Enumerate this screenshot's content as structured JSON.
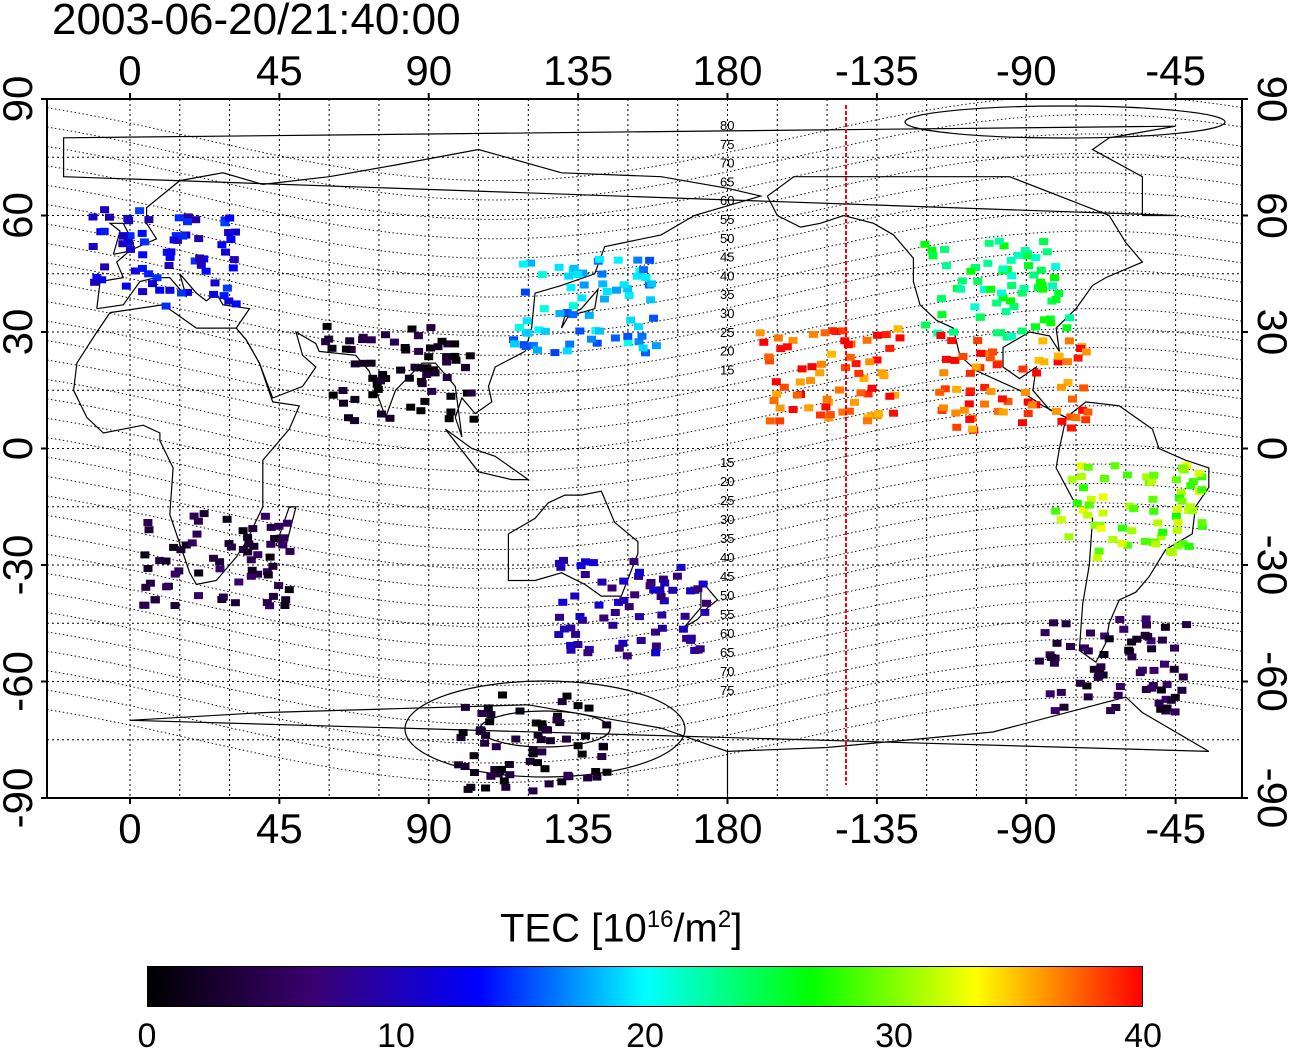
{
  "title": "2003-06-20/21:40:00",
  "map": {
    "top_axis_labels": [
      "0",
      "45",
      "90",
      "135",
      "180",
      "-135",
      "-90",
      "-45"
    ],
    "bottom_axis_labels": [
      "0",
      "45",
      "90",
      "135",
      "180",
      "-135",
      "-90",
      "-45"
    ],
    "left_axis_labels": [
      "90",
      "60",
      "30",
      "0",
      "-30",
      "-60",
      "-90"
    ],
    "right_axis_labels": [
      "90",
      "60",
      "30",
      "0",
      "-30",
      "-60",
      "-90"
    ],
    "magnetic_lat_labels_north": [
      "80",
      "75",
      "70",
      "65",
      "60",
      "55",
      "50",
      "45",
      "40",
      "35",
      "30",
      "25",
      "20",
      "15"
    ],
    "magnetic_lat_labels_south": [
      "15",
      "20",
      "25",
      "30",
      "35",
      "40",
      "45",
      "50",
      "55",
      "60",
      "65",
      "70",
      "75"
    ],
    "terminator_color": "#ff0000",
    "gridline_style": "dotted"
  },
  "colorbar": {
    "title_main": "TEC  [10",
    "title_exp1": "16",
    "title_mid": "/m",
    "title_exp2": "2",
    "title_end": "]",
    "min": 0,
    "max": 40,
    "tick_labels": [
      "0",
      "10",
      "20",
      "30",
      "40"
    ],
    "stops": [
      "#000000",
      "#3a0070",
      "#0000ff",
      "#00ffff",
      "#00ff00",
      "#ffff00",
      "#ff0000"
    ]
  },
  "chart_data": {
    "type": "heatmap",
    "title": "2003-06-20/21:40:00",
    "x_ticks": [
      "0",
      "45",
      "90",
      "135",
      "180",
      "-135",
      "-90",
      "-45"
    ],
    "y_ticks": [
      "90",
      "60",
      "30",
      "0",
      "-30",
      "-60",
      "-90"
    ],
    "colorbar_label": "TEC [10^16/m^2]",
    "colorbar_range": [
      0,
      40
    ],
    "regions": [
      {
        "lon": 10,
        "lat": 50,
        "tec": 12
      },
      {
        "lon": 135,
        "lat": 38,
        "tec": 18
      },
      {
        "lon": 80,
        "lat": 20,
        "tec": 2
      },
      {
        "lon": 150,
        "lat": -40,
        "tec": 9
      },
      {
        "lon": 25,
        "lat": -28,
        "tec": 4
      },
      {
        "lon": -100,
        "lat": 42,
        "tec": 24
      },
      {
        "lon": -95,
        "lat": 18,
        "tec": 38
      },
      {
        "lon": -60,
        "lat": -15,
        "tec": 30
      },
      {
        "lon": -65,
        "lat": -55,
        "tec": 4
      },
      {
        "lon": -150,
        "lat": 20,
        "tec": 38
      },
      {
        "lon": 120,
        "lat": -75,
        "tec": 2
      }
    ]
  }
}
